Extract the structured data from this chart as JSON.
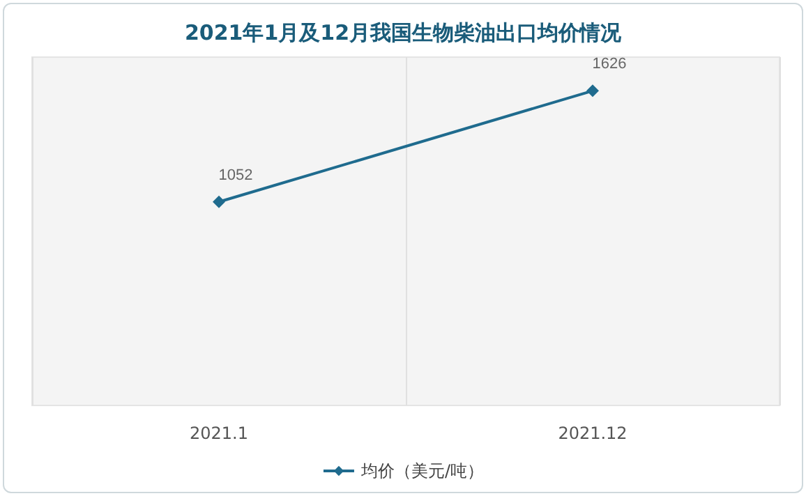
{
  "chart_data": {
    "type": "line",
    "title": "2021年1月及12月我国生物柴油出口均价情况",
    "categories": [
      "2021.1",
      "2021.12"
    ],
    "series": [
      {
        "name": "均价（美元/吨）",
        "color": "#1f6b8e",
        "values": [
          1052,
          1626
        ]
      }
    ],
    "data_labels": true,
    "marker": "diamond",
    "line_style": "solid",
    "grid": "x",
    "legend": "bottom"
  }
}
